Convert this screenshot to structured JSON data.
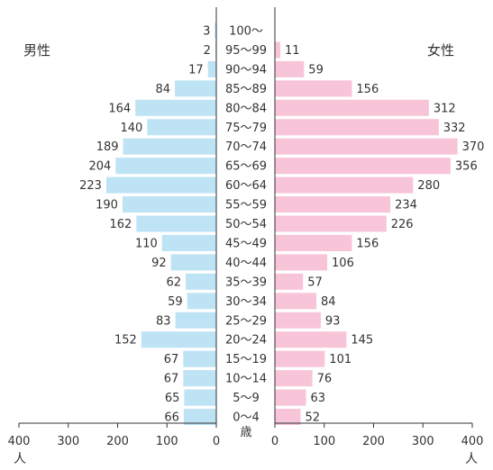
{
  "chart_data": {
    "type": "bar",
    "male_label": "男性",
    "female_label": "女性",
    "age_unit": "歳",
    "x_unit_left": "人",
    "x_unit_right": "人",
    "categories": [
      "100～",
      "95～99",
      "90～94",
      "85～89",
      "80～84",
      "75～79",
      "70～74",
      "65～69",
      "60～64",
      "55～59",
      "50～54",
      "45～49",
      "40～44",
      "35～39",
      "30～34",
      "25～29",
      "20～24",
      "15～19",
      "10～14",
      "5～9",
      "0～4"
    ],
    "series": [
      {
        "name": "男性",
        "color": "#bde3f5",
        "values": [
          3,
          2,
          17,
          84,
          164,
          140,
          189,
          204,
          223,
          190,
          162,
          110,
          92,
          62,
          59,
          83,
          152,
          67,
          67,
          65,
          66
        ]
      },
      {
        "name": "女性",
        "color": "#f7c4d8",
        "values": [
          null,
          11,
          59,
          156,
          312,
          332,
          370,
          356,
          280,
          234,
          226,
          156,
          106,
          57,
          84,
          93,
          145,
          101,
          76,
          63,
          52
        ]
      }
    ],
    "left_ticks": [
      "400",
      "300",
      "200",
      "100",
      "0"
    ],
    "right_ticks": [
      "0",
      "100",
      "200",
      "300",
      "400"
    ],
    "xlim": [
      0,
      400
    ]
  }
}
